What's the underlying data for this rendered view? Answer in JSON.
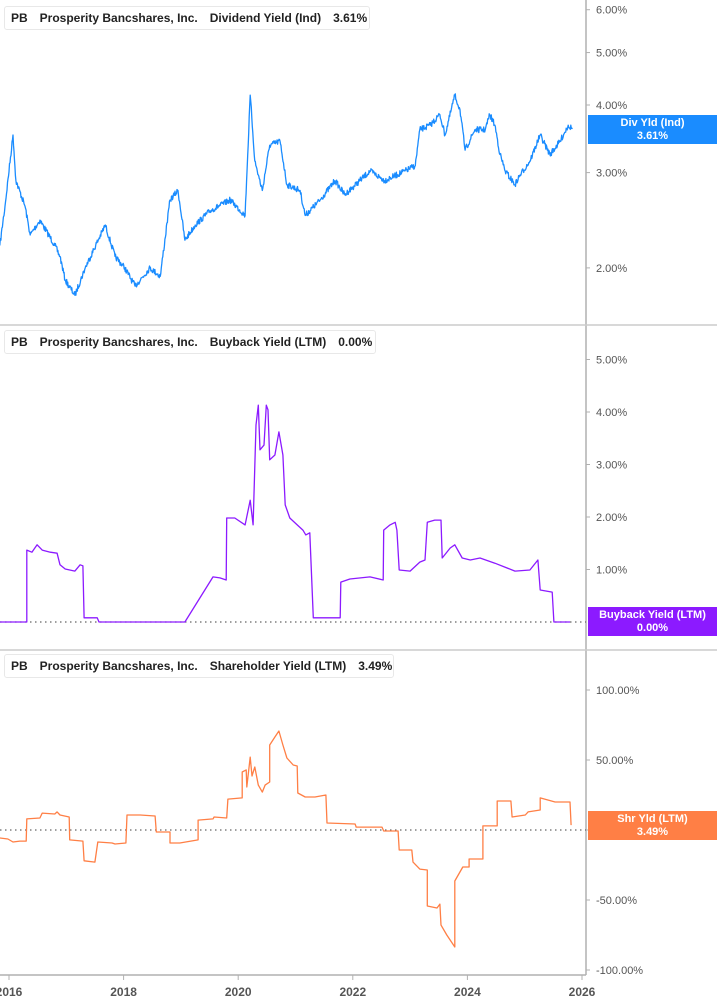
{
  "chart_data": [
    {
      "type": "line",
      "ticker": "PB",
      "company": "Prosperity Bancshares, Inc.",
      "series_label": "Dividend Yield (Ind)",
      "current_value": "3.61%",
      "tag_label": "Div Yld (Ind)",
      "tag_value": "3.61%",
      "color": "#1a8cff",
      "yscale": "log",
      "ylim": [
        1.6,
        6.3
      ],
      "yticks": [
        2,
        3,
        4,
        5,
        6
      ],
      "ytick_labels": [
        "2.00%",
        "3.00%",
        "4.00%",
        "5.00%",
        "6.00%"
      ],
      "points": [
        [
          2015.84,
          2.2
        ],
        [
          2015.93,
          2.6
        ],
        [
          2016.07,
          3.52
        ],
        [
          2016.12,
          2.9
        ],
        [
          2016.28,
          2.6
        ],
        [
          2016.37,
          2.3
        ],
        [
          2016.54,
          2.45
        ],
        [
          2016.8,
          2.2
        ],
        [
          2016.89,
          2.1
        ],
        [
          2016.98,
          1.9
        ],
        [
          2017.15,
          1.78
        ],
        [
          2017.33,
          2.0
        ],
        [
          2017.68,
          2.4
        ],
        [
          2017.85,
          2.1
        ],
        [
          2018.02,
          2.0
        ],
        [
          2018.2,
          1.85
        ],
        [
          2018.46,
          2.0
        ],
        [
          2018.64,
          1.93
        ],
        [
          2018.81,
          2.67
        ],
        [
          2018.95,
          2.78
        ],
        [
          2019.07,
          2.25
        ],
        [
          2019.25,
          2.4
        ],
        [
          2019.51,
          2.55
        ],
        [
          2019.86,
          2.67
        ],
        [
          2020.12,
          2.5
        ],
        [
          2020.21,
          4.17
        ],
        [
          2020.29,
          3.15
        ],
        [
          2020.42,
          2.78
        ],
        [
          2020.55,
          3.37
        ],
        [
          2020.73,
          3.43
        ],
        [
          2020.85,
          2.85
        ],
        [
          2021.08,
          2.78
        ],
        [
          2021.17,
          2.5
        ],
        [
          2021.43,
          2.67
        ],
        [
          2021.69,
          2.9
        ],
        [
          2021.86,
          2.73
        ],
        [
          2022.3,
          3.02
        ],
        [
          2022.56,
          2.9
        ],
        [
          2022.91,
          3.02
        ],
        [
          2023.09,
          3.09
        ],
        [
          2023.17,
          3.6
        ],
        [
          2023.35,
          3.67
        ],
        [
          2023.52,
          3.84
        ],
        [
          2023.61,
          3.52
        ],
        [
          2023.78,
          4.17
        ],
        [
          2023.87,
          3.92
        ],
        [
          2023.96,
          3.3
        ],
        [
          2024.13,
          3.6
        ],
        [
          2024.31,
          3.6
        ],
        [
          2024.39,
          3.84
        ],
        [
          2024.48,
          3.67
        ],
        [
          2024.57,
          3.24
        ],
        [
          2024.66,
          3.02
        ],
        [
          2024.83,
          2.85
        ],
        [
          2024.92,
          2.97
        ],
        [
          2025.09,
          3.15
        ],
        [
          2025.27,
          3.52
        ],
        [
          2025.44,
          3.24
        ],
        [
          2025.62,
          3.43
        ],
        [
          2025.76,
          3.67
        ],
        [
          2025.83,
          3.61
        ]
      ]
    },
    {
      "type": "line",
      "ticker": "PB",
      "company": "Prosperity Bancshares, Inc.",
      "series_label": "Buyback Yield (LTM)",
      "current_value": "0.00%",
      "tag_label": "Buyback Yield (LTM)",
      "tag_value": "0.00%",
      "color": "#8c1aff",
      "yscale": "linear",
      "ylim": [
        -0.5,
        5.5
      ],
      "yticks": [
        1,
        2,
        3,
        4,
        5
      ],
      "ytick_labels": [
        "1.00%",
        "2.00%",
        "3.00%",
        "4.00%",
        "5.00%"
      ],
      "zero_line": 0,
      "points": [
        [
          2015.84,
          0
        ],
        [
          2016.31,
          0
        ],
        [
          2016.31,
          1.37
        ],
        [
          2016.4,
          1.33
        ],
        [
          2016.49,
          1.47
        ],
        [
          2016.58,
          1.37
        ],
        [
          2016.72,
          1.33
        ],
        [
          2016.84,
          1.31
        ],
        [
          2016.89,
          1.09
        ],
        [
          2016.98,
          1.01
        ],
        [
          2017.15,
          0.97
        ],
        [
          2017.24,
          1.09
        ],
        [
          2017.29,
          1.07
        ],
        [
          2017.31,
          0.08
        ],
        [
          2017.54,
          0.08
        ],
        [
          2017.57,
          0
        ],
        [
          2019.07,
          0
        ],
        [
          2019.56,
          0.86
        ],
        [
          2019.68,
          0.84
        ],
        [
          2019.79,
          0.8
        ],
        [
          2019.8,
          1.98
        ],
        [
          2019.94,
          1.98
        ],
        [
          2020.12,
          1.85
        ],
        [
          2020.21,
          2.32
        ],
        [
          2020.26,
          1.85
        ],
        [
          2020.31,
          3.75
        ],
        [
          2020.35,
          4.13
        ],
        [
          2020.38,
          3.28
        ],
        [
          2020.45,
          3.37
        ],
        [
          2020.49,
          4.13
        ],
        [
          2020.52,
          4.04
        ],
        [
          2020.55,
          3.09
        ],
        [
          2020.64,
          3.18
        ],
        [
          2020.71,
          3.62
        ],
        [
          2020.78,
          3.18
        ],
        [
          2020.82,
          2.23
        ],
        [
          2020.9,
          1.98
        ],
        [
          2021.03,
          1.85
        ],
        [
          2021.13,
          1.75
        ],
        [
          2021.18,
          1.66
        ],
        [
          2021.25,
          1.7
        ],
        [
          2021.31,
          0.08
        ],
        [
          2021.78,
          0.08
        ],
        [
          2021.79,
          0.76
        ],
        [
          2021.95,
          0.82
        ],
        [
          2022.3,
          0.86
        ],
        [
          2022.53,
          0.8
        ],
        [
          2022.54,
          1.75
        ],
        [
          2022.65,
          1.85
        ],
        [
          2022.74,
          1.9
        ],
        [
          2022.77,
          1.75
        ],
        [
          2022.81,
          0.99
        ],
        [
          2023.0,
          0.97
        ],
        [
          2023.17,
          1.14
        ],
        [
          2023.26,
          1.18
        ],
        [
          2023.3,
          1.9
        ],
        [
          2023.43,
          1.94
        ],
        [
          2023.54,
          1.94
        ],
        [
          2023.56,
          1.22
        ],
        [
          2023.7,
          1.41
        ],
        [
          2023.78,
          1.47
        ],
        [
          2023.91,
          1.22
        ],
        [
          2024.05,
          1.18
        ],
        [
          2024.22,
          1.22
        ],
        [
          2024.48,
          1.12
        ],
        [
          2024.83,
          0.97
        ],
        [
          2025.09,
          0.99
        ],
        [
          2025.23,
          1.18
        ],
        [
          2025.27,
          0.61
        ],
        [
          2025.48,
          0.57
        ],
        [
          2025.51,
          0
        ],
        [
          2025.79,
          0
        ]
      ]
    },
    {
      "type": "line",
      "ticker": "PB",
      "company": "Prosperity Bancshares, Inc.",
      "series_label": "Shareholder Yield (LTM)",
      "current_value": "3.49%",
      "tag_label": "Shr Yld (LTM)",
      "tag_value": "3.49%",
      "color": "#ff7f45",
      "yscale": "linear",
      "ylim": [
        -105,
        115
      ],
      "yticks": [
        -100,
        -50,
        0,
        50,
        100
      ],
      "ytick_labels": [
        "-100.00%",
        "-50.00%",
        "0.00%",
        "50.00%",
        "100.00%"
      ],
      "zero_line": 0,
      "points": [
        [
          2015.84,
          -5.7
        ],
        [
          2015.98,
          -6.4
        ],
        [
          2016.07,
          -8.6
        ],
        [
          2016.19,
          -7.9
        ],
        [
          2016.3,
          -7.9
        ],
        [
          2016.31,
          7.9
        ],
        [
          2016.54,
          8.6
        ],
        [
          2016.58,
          12.1
        ],
        [
          2016.8,
          11.4
        ],
        [
          2016.84,
          12.9
        ],
        [
          2016.89,
          10.7
        ],
        [
          2017.05,
          9.3
        ],
        [
          2017.06,
          -7.1
        ],
        [
          2017.29,
          -7.9
        ],
        [
          2017.31,
          -22.0
        ],
        [
          2017.5,
          -22.9
        ],
        [
          2017.55,
          -8.6
        ],
        [
          2017.8,
          -9.3
        ],
        [
          2017.85,
          -10.0
        ],
        [
          2018.04,
          -9.3
        ],
        [
          2018.06,
          10.7
        ],
        [
          2018.29,
          10.7
        ],
        [
          2018.55,
          10.0
        ],
        [
          2018.57,
          -1.4
        ],
        [
          2018.81,
          -1.4
        ],
        [
          2018.81,
          -9.3
        ],
        [
          2018.98,
          -9.3
        ],
        [
          2019.3,
          -7.1
        ],
        [
          2019.3,
          7.1
        ],
        [
          2019.56,
          7.9
        ],
        [
          2019.58,
          9.3
        ],
        [
          2019.8,
          8.6
        ],
        [
          2019.82,
          22.1
        ],
        [
          2020.07,
          22.9
        ],
        [
          2020.07,
          41.4
        ],
        [
          2020.14,
          42.9
        ],
        [
          2020.15,
          30.7
        ],
        [
          2020.21,
          52.1
        ],
        [
          2020.24,
          38.6
        ],
        [
          2020.29,
          45.0
        ],
        [
          2020.35,
          32.1
        ],
        [
          2020.42,
          27.1
        ],
        [
          2020.47,
          32.1
        ],
        [
          2020.55,
          34.3
        ],
        [
          2020.55,
          60.7
        ],
        [
          2020.64,
          66.4
        ],
        [
          2020.71,
          70.7
        ],
        [
          2020.78,
          60.7
        ],
        [
          2020.85,
          51.4
        ],
        [
          2020.96,
          46.4
        ],
        [
          2021.03,
          45.7
        ],
        [
          2021.04,
          26.4
        ],
        [
          2021.17,
          23.6
        ],
        [
          2021.34,
          23.6
        ],
        [
          2021.53,
          25.0
        ],
        [
          2021.55,
          5.0
        ],
        [
          2022.04,
          4.3
        ],
        [
          2022.06,
          2.1
        ],
        [
          2022.51,
          2.1
        ],
        [
          2022.54,
          -0.7
        ],
        [
          2022.79,
          -0.7
        ],
        [
          2022.81,
          -14.3
        ],
        [
          2023.03,
          -14.3
        ],
        [
          2023.05,
          -22.9
        ],
        [
          2023.17,
          -27.9
        ],
        [
          2023.3,
          -28.6
        ],
        [
          2023.3,
          -54.3
        ],
        [
          2023.47,
          -55.7
        ],
        [
          2023.52,
          -52.9
        ],
        [
          2023.54,
          -67.9
        ],
        [
          2023.64,
          -75.0
        ],
        [
          2023.78,
          -83.6
        ],
        [
          2023.78,
          -36.4
        ],
        [
          2023.92,
          -26.4
        ],
        [
          2024.03,
          -26.4
        ],
        [
          2024.03,
          -20.7
        ],
        [
          2024.27,
          -20.7
        ],
        [
          2024.27,
          2.9
        ],
        [
          2024.52,
          2.9
        ],
        [
          2024.52,
          20.7
        ],
        [
          2024.76,
          20.7
        ],
        [
          2024.78,
          9.3
        ],
        [
          2025.01,
          10.7
        ],
        [
          2025.06,
          12.9
        ],
        [
          2025.27,
          14.3
        ],
        [
          2025.27,
          22.9
        ],
        [
          2025.53,
          20.0
        ],
        [
          2025.79,
          20.0
        ],
        [
          2025.81,
          3.49
        ]
      ]
    }
  ],
  "x_axis": {
    "ticks": [
      2016,
      2018,
      2020,
      2022,
      2024,
      2026
    ],
    "tick_labels": [
      "2016",
      "2018",
      "2020",
      "2022",
      "2024",
      "2026"
    ]
  }
}
